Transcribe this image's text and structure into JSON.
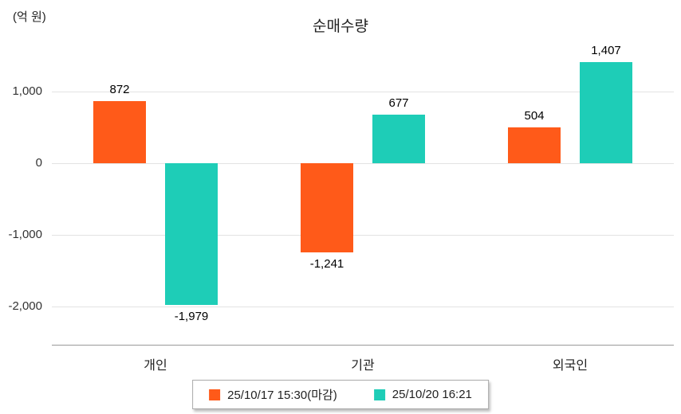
{
  "chart_data": {
    "type": "bar",
    "title": "순매수량",
    "unit_label": "(억 원)",
    "categories": [
      "개인",
      "기관",
      "외국인"
    ],
    "series": [
      {
        "name": "25/10/17 15:30(마감)",
        "color": "#ff5a19",
        "values": [
          872,
          -1241,
          504
        ]
      },
      {
        "name": "25/10/20 16:21",
        "color": "#1ecdb7",
        "values": [
          -1979,
          677,
          1407
        ]
      }
    ],
    "yticks": [
      1000,
      0,
      -1000,
      -2000
    ],
    "ylim": [
      -2300,
      1600
    ],
    "grid": true,
    "legend_position": "bottom"
  }
}
